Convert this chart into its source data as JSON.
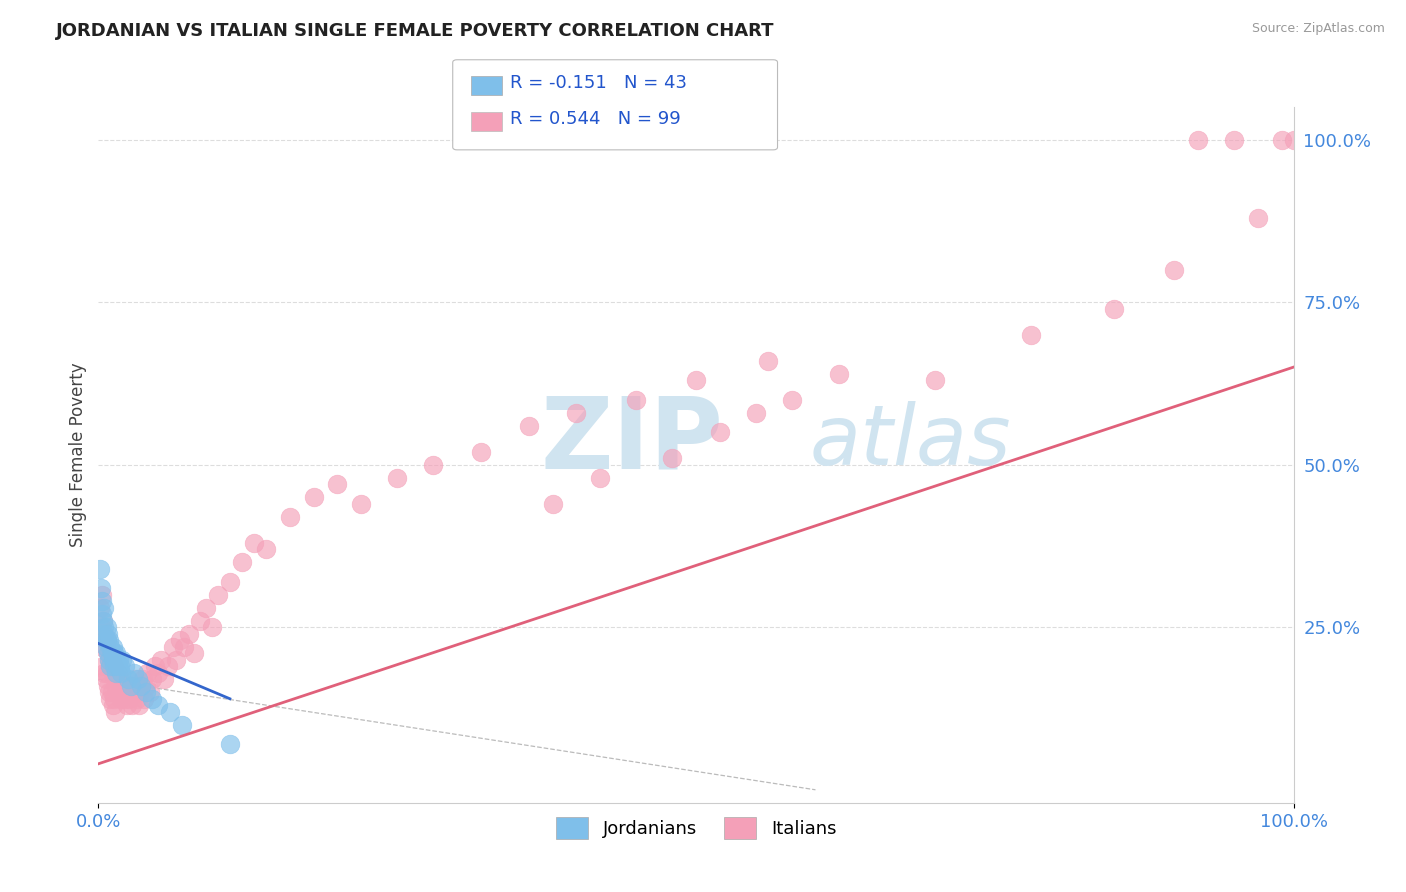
{
  "title": "JORDANIAN VS ITALIAN SINGLE FEMALE POVERTY CORRELATION CHART",
  "source": "Source: ZipAtlas.com",
  "ylabel": "Single Female Poverty",
  "xlim": [
    0.0,
    1.0
  ],
  "ylim": [
    -0.02,
    1.05
  ],
  "jordanian_R": -0.151,
  "jordanian_N": 43,
  "italian_R": 0.544,
  "italian_N": 99,
  "jordanian_color": "#7fbfea",
  "italian_color": "#f4a0b8",
  "jordanian_trend_color": "#3366cc",
  "italian_trend_color": "#e0607a",
  "background_color": "#ffffff",
  "grid_color": "#dddddd",
  "watermark_color": "#d0e4f0",
  "tick_color": "#4488dd",
  "jordanian_x": [
    0.001,
    0.002,
    0.003,
    0.003,
    0.004,
    0.004,
    0.005,
    0.005,
    0.006,
    0.006,
    0.007,
    0.007,
    0.008,
    0.008,
    0.009,
    0.009,
    0.01,
    0.01,
    0.011,
    0.012,
    0.012,
    0.013,
    0.013,
    0.014,
    0.015,
    0.015,
    0.016,
    0.017,
    0.018,
    0.019,
    0.02,
    0.022,
    0.025,
    0.027,
    0.03,
    0.033,
    0.036,
    0.04,
    0.045,
    0.05,
    0.06,
    0.07,
    0.11
  ],
  "jordanian_y": [
    0.34,
    0.31,
    0.29,
    0.27,
    0.26,
    0.24,
    0.28,
    0.25,
    0.23,
    0.22,
    0.25,
    0.23,
    0.24,
    0.21,
    0.23,
    0.2,
    0.22,
    0.19,
    0.21,
    0.22,
    0.2,
    0.21,
    0.19,
    0.2,
    0.21,
    0.18,
    0.19,
    0.2,
    0.19,
    0.18,
    0.2,
    0.19,
    0.17,
    0.16,
    0.18,
    0.17,
    0.16,
    0.15,
    0.14,
    0.13,
    0.12,
    0.1,
    0.07
  ],
  "italian_x": [
    0.001,
    0.002,
    0.003,
    0.003,
    0.004,
    0.004,
    0.005,
    0.005,
    0.006,
    0.006,
    0.007,
    0.007,
    0.008,
    0.008,
    0.009,
    0.009,
    0.01,
    0.01,
    0.011,
    0.011,
    0.012,
    0.012,
    0.013,
    0.013,
    0.014,
    0.014,
    0.015,
    0.016,
    0.017,
    0.018,
    0.019,
    0.02,
    0.021,
    0.022,
    0.023,
    0.024,
    0.025,
    0.026,
    0.027,
    0.028,
    0.03,
    0.031,
    0.032,
    0.033,
    0.034,
    0.035,
    0.037,
    0.038,
    0.04,
    0.041,
    0.043,
    0.045,
    0.047,
    0.05,
    0.052,
    0.055,
    0.058,
    0.062,
    0.065,
    0.068,
    0.072,
    0.076,
    0.08,
    0.085,
    0.09,
    0.095,
    0.1,
    0.11,
    0.12,
    0.13,
    0.14,
    0.16,
    0.18,
    0.2,
    0.22,
    0.25,
    0.28,
    0.32,
    0.36,
    0.4,
    0.45,
    0.5,
    0.56,
    0.38,
    0.42,
    0.48,
    0.52,
    0.55,
    0.58,
    0.62,
    0.7,
    0.78,
    0.85,
    0.9,
    0.92,
    0.95,
    0.97,
    0.99,
    1.0
  ],
  "italian_y": [
    0.28,
    0.25,
    0.3,
    0.22,
    0.26,
    0.19,
    0.24,
    0.18,
    0.22,
    0.17,
    0.23,
    0.18,
    0.21,
    0.16,
    0.2,
    0.15,
    0.19,
    0.14,
    0.2,
    0.15,
    0.18,
    0.13,
    0.19,
    0.14,
    0.17,
    0.12,
    0.16,
    0.18,
    0.17,
    0.15,
    0.14,
    0.16,
    0.15,
    0.14,
    0.16,
    0.13,
    0.15,
    0.14,
    0.16,
    0.13,
    0.15,
    0.17,
    0.14,
    0.16,
    0.13,
    0.15,
    0.17,
    0.14,
    0.16,
    0.18,
    0.15,
    0.17,
    0.19,
    0.18,
    0.2,
    0.17,
    0.19,
    0.22,
    0.2,
    0.23,
    0.22,
    0.24,
    0.21,
    0.26,
    0.28,
    0.25,
    0.3,
    0.32,
    0.35,
    0.38,
    0.37,
    0.42,
    0.45,
    0.47,
    0.44,
    0.48,
    0.5,
    0.52,
    0.56,
    0.58,
    0.6,
    0.63,
    0.66,
    0.44,
    0.48,
    0.51,
    0.55,
    0.58,
    0.6,
    0.64,
    0.63,
    0.7,
    0.74,
    0.8,
    1.0,
    1.0,
    0.88,
    1.0,
    1.0
  ],
  "italian_trend_x0": 0.0,
  "italian_trend_y0": 0.04,
  "italian_trend_x1": 1.0,
  "italian_trend_y1": 0.65,
  "jordanian_trend_x0": 0.0,
  "jordanian_trend_y0": 0.225,
  "jordanian_trend_x1": 0.11,
  "jordanian_trend_y1": 0.14,
  "dashed_trend_x0": 0.0,
  "dashed_trend_y0": 0.17,
  "dashed_trend_x1": 0.6,
  "dashed_trend_y1": 0.0
}
